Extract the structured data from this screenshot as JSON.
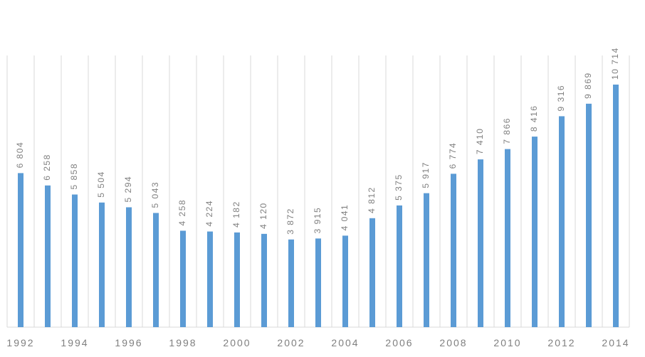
{
  "chart_data": {
    "type": "bar",
    "categories": [
      "1992",
      null,
      "1994",
      null,
      "1996",
      null,
      "1998",
      null,
      "2000",
      null,
      "2002",
      null,
      "2004",
      null,
      "2006",
      null,
      "2008",
      null,
      "2010",
      null,
      "2012",
      null,
      "2014"
    ],
    "values": [
      6804,
      6258,
      5858,
      5504,
      5294,
      5043,
      4258,
      4224,
      4182,
      4120,
      3872,
      3915,
      4041,
      4812,
      5375,
      5917,
      6774,
      7410,
      7866,
      8416,
      9316,
      9869,
      10714
    ],
    "value_labels": [
      "6 804",
      "6 258",
      "5 858",
      "5 504",
      "5 294",
      "5 043",
      "4 258",
      "4 224",
      "4 182",
      "4 120",
      "3 872",
      "3 915",
      "4 041",
      "4 812",
      "5 375",
      "5 917",
      "6 774",
      "7 410",
      "7 866",
      "8 416",
      "9 316",
      "9 869",
      "10 714"
    ],
    "color": "#5b9bd5",
    "ylim": [
      0,
      12000
    ],
    "grid": true
  }
}
